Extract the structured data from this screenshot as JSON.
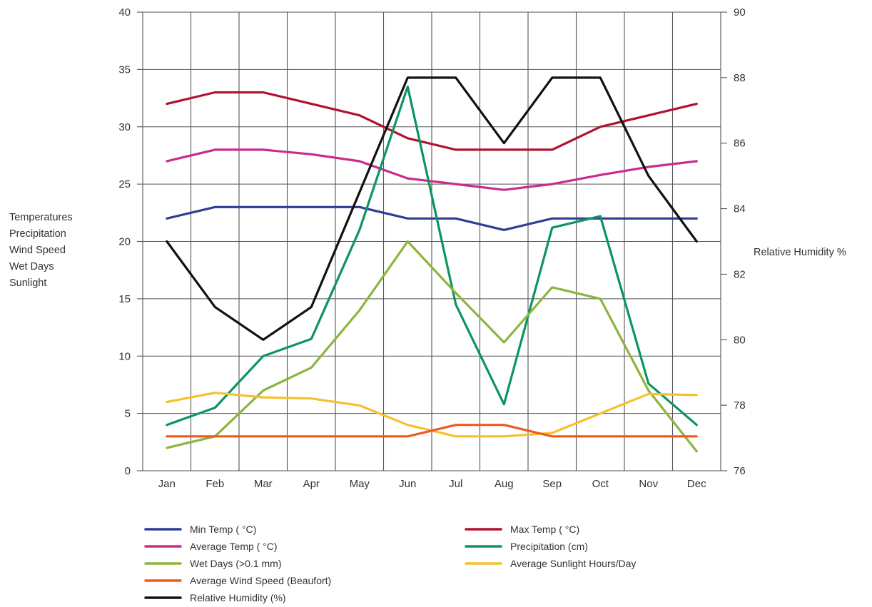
{
  "chart_data": {
    "type": "line",
    "categories": [
      "Jan",
      "Feb",
      "Mar",
      "Apr",
      "May",
      "Jun",
      "Jul",
      "Aug",
      "Sep",
      "Oct",
      "Nov",
      "Dec"
    ],
    "y_left": {
      "label_lines": [
        "Temperatures",
        "Precipitation",
        "Wind Speed",
        "Wet Days",
        "Sunlight"
      ],
      "range": [
        0,
        40
      ],
      "ticks": [
        0,
        5,
        10,
        15,
        20,
        25,
        30,
        35,
        40
      ]
    },
    "y_right": {
      "label": "Relative Humidity %",
      "range": [
        76,
        90
      ],
      "ticks": [
        76,
        78,
        80,
        82,
        84,
        86,
        88,
        90
      ]
    },
    "grid": true,
    "legend_position": "bottom",
    "series": [
      {
        "name": "Min Temp (   °C)",
        "axis": "left",
        "color": "#2e3e94",
        "values": [
          22,
          23,
          23,
          23,
          23,
          22,
          22,
          21,
          22,
          22,
          22,
          22
        ]
      },
      {
        "name": "Max Temp (    °C)",
        "axis": "left",
        "color": "#b0122f",
        "values": [
          32,
          33,
          33,
          32,
          31,
          29,
          28,
          28,
          28,
          30,
          31,
          32
        ]
      },
      {
        "name": "Average Temp (    °C)",
        "axis": "left",
        "color": "#c92c8b",
        "values": [
          27,
          28,
          28,
          27.6,
          27,
          25.5,
          25,
          24.5,
          25,
          25.8,
          26.5,
          27
        ]
      },
      {
        "name": "Precipitation (cm)",
        "axis": "left",
        "color": "#0d9460",
        "values": [
          4,
          5.5,
          10,
          11.5,
          21,
          33.5,
          14.5,
          5.8,
          21.2,
          22.2,
          7.6,
          4
        ]
      },
      {
        "name": "Wet Days (>0.1 mm)",
        "axis": "left",
        "color": "#8cb540",
        "values": [
          2,
          3,
          7,
          9,
          14,
          20,
          15.5,
          11.2,
          16,
          15,
          7,
          1.7
        ]
      },
      {
        "name": "Average Sunlight Hours/Day",
        "axis": "left",
        "color": "#f4c12e",
        "values": [
          6,
          6.8,
          6.4,
          6.3,
          5.7,
          4,
          3,
          3,
          3.3,
          5,
          6.7,
          6.6
        ]
      },
      {
        "name": "Average Wind Speed (Beaufort)",
        "axis": "left",
        "color": "#ee5a1b",
        "values": [
          3,
          3,
          3,
          3,
          3,
          3,
          4,
          4,
          3,
          3,
          3,
          3
        ]
      },
      {
        "name": "Relative Humidity (%)",
        "axis": "right",
        "color": "#111111",
        "values": [
          83,
          81,
          80,
          81,
          84.5,
          88,
          88,
          86,
          88,
          88,
          85,
          83
        ]
      }
    ]
  }
}
